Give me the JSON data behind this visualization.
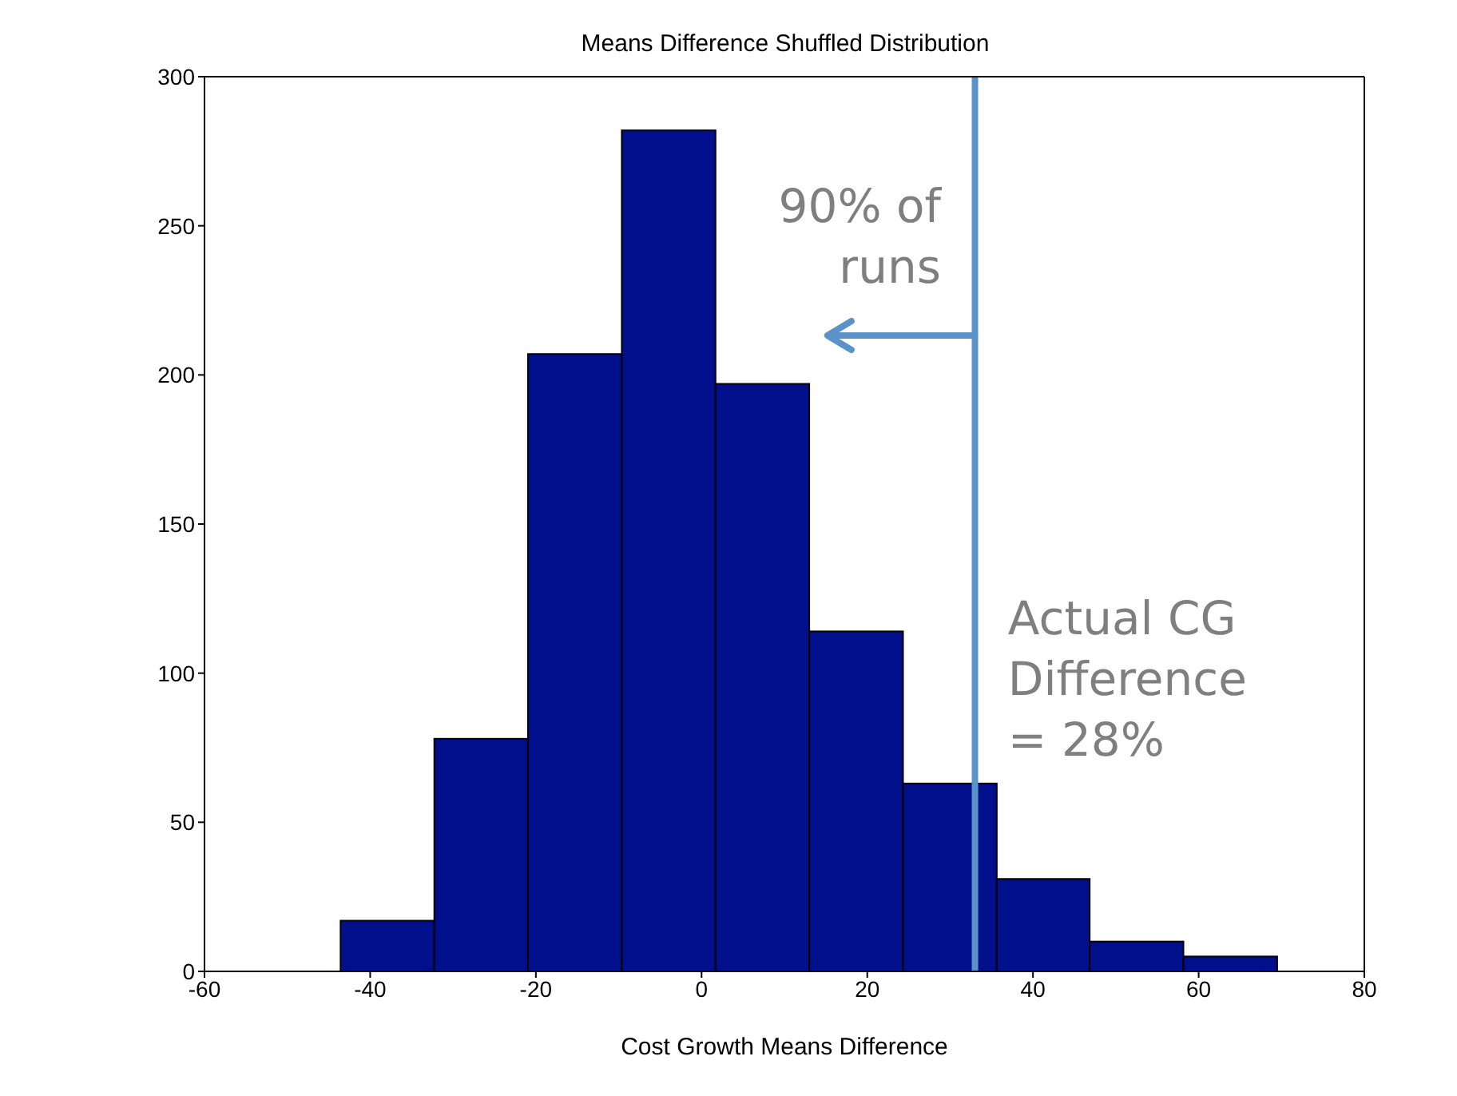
{
  "chart_data": {
    "type": "histogram",
    "title": "Means Difference Shuffled Distribution",
    "xlabel": "Cost Growth Means Difference",
    "bins": [
      -43.6,
      -32.3,
      -21.0,
      -9.7,
      1.6,
      12.9,
      24.2,
      35.5,
      46.7,
      58.0,
      69.3
    ],
    "values": [
      17,
      78,
      207,
      282,
      197,
      114,
      63,
      31,
      10,
      5
    ],
    "color": "#00108c",
    "xlim": [
      -60,
      80
    ],
    "xticks": [
      -60,
      -40,
      -20,
      0,
      20,
      40,
      60,
      80
    ],
    "ylim": [
      0,
      300
    ],
    "yticks": [
      0,
      50,
      100,
      150,
      200,
      250,
      300
    ],
    "ref_lines": [
      {
        "axis": "x",
        "value": 33,
        "color": "#5b93c8"
      }
    ],
    "annotations": [
      "90% of runs",
      "Actual CG Difference = 28%"
    ]
  }
}
